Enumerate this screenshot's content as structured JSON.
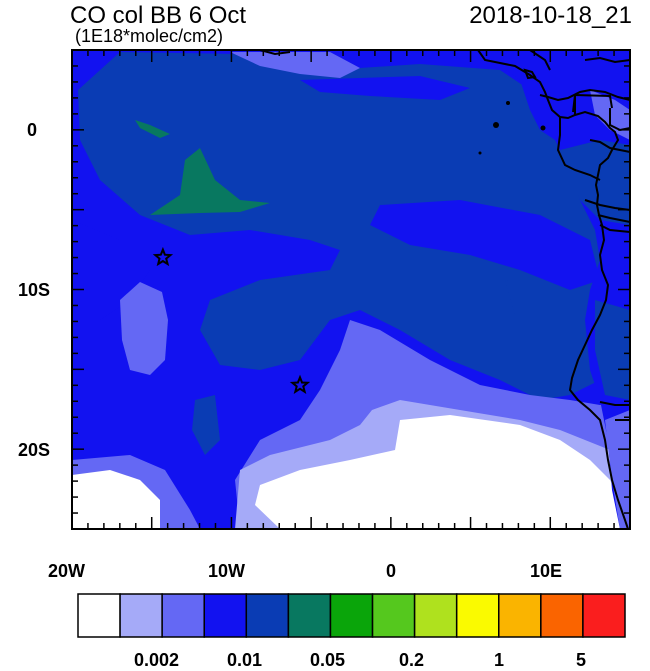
{
  "header": {
    "title": "CO col BB 6 Oct",
    "units": "(1E18*molec/cm2)",
    "timestamp": "2018-10-18_21"
  },
  "axes": {
    "lat_ticks": [
      {
        "value": 0,
        "label": "0"
      },
      {
        "value": -10,
        "label": "10S"
      },
      {
        "value": -20,
        "label": "20S"
      }
    ],
    "lon_ticks": [
      {
        "value": -20,
        "label": "20W"
      },
      {
        "value": -10,
        "label": "10W"
      },
      {
        "value": 0,
        "label": "0"
      },
      {
        "value": 10,
        "label": "10E"
      }
    ],
    "lon_range": [
      -20,
      15
    ],
    "lat_range": [
      -25,
      5
    ]
  },
  "markers": [
    {
      "name": "star",
      "lon": -14.3,
      "lat": -8
    },
    {
      "name": "star",
      "lon": -5.7,
      "lat": -16
    }
  ],
  "colorbar": {
    "colors": [
      "#ffffff",
      "#a5aaf8",
      "#6468f4",
      "#1212f0",
      "#0a3cb4",
      "#087860",
      "#0aa50a",
      "#55c81e",
      "#afe11e",
      "#fafa00",
      "#fab400",
      "#fa6400",
      "#fa1e1e"
    ],
    "labels": [
      {
        "after_box": 2,
        "text": "0.002"
      },
      {
        "after_box": 4,
        "text": "0.01"
      },
      {
        "after_box": 6,
        "text": "0.05"
      },
      {
        "after_box": 8,
        "text": "0.2"
      },
      {
        "after_box": 10,
        "text": "1"
      },
      {
        "after_box": 12,
        "text": "5"
      }
    ]
  }
}
